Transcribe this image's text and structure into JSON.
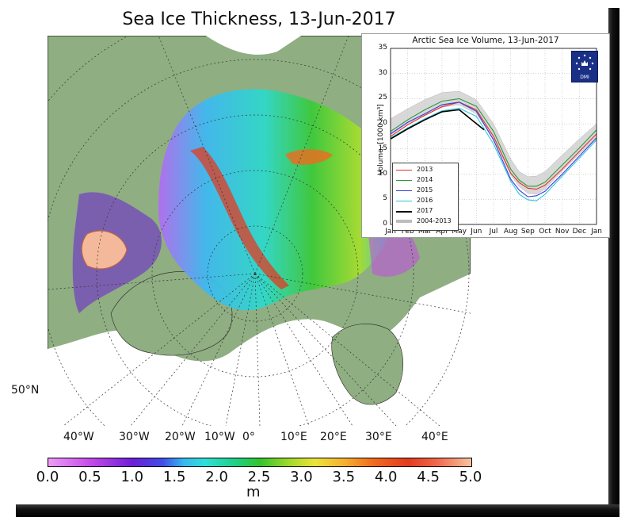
{
  "main_title": "Sea Ice Thickness, 13-Jun-2017",
  "map": {
    "lon_ticks": [
      "40°W",
      "30°W",
      "20°W",
      "10°W",
      "0°",
      "10°E",
      "20°E",
      "30°E",
      "40°E"
    ],
    "lat_tick": "50°N",
    "colors": {
      "land": "#8fae82",
      "ocean": "#ffffff",
      "grid": "#333333"
    }
  },
  "colorbar": {
    "ticks": [
      "0.0",
      "0.5",
      "1.0",
      "1.5",
      "2.0",
      "2.5",
      "3.0",
      "3.5",
      "4.0",
      "4.5",
      "5.0"
    ],
    "unit": "m",
    "range": [
      0,
      5
    ]
  },
  "chart_data": {
    "type": "line",
    "title": "Arctic Sea Ice Volume, 13-Jun-2017",
    "ylabel": "Volume, [1000 km³]",
    "xlabel": "",
    "ylim": [
      0,
      35
    ],
    "yticks": [
      0,
      5,
      10,
      15,
      20,
      25,
      30,
      35
    ],
    "months": [
      "Jan",
      "Feb",
      "Mar",
      "Apr",
      "May",
      "Jun",
      "Jul",
      "Aug",
      "Sep",
      "Oct",
      "Nov",
      "Dec",
      "Jan"
    ],
    "legend_position": "lower-left",
    "grid": true,
    "logo_text": "DMI",
    "series": [
      {
        "name": "2013",
        "color": "#e8302a",
        "x": [
          0,
          1,
          2,
          3,
          4,
          5,
          6,
          7,
          7.5,
          8,
          8.5,
          9,
          10,
          11,
          12
        ],
        "values": [
          17.5,
          19.8,
          21.7,
          23.4,
          24.3,
          22.8,
          17.5,
          10.2,
          8.3,
          7.2,
          7.0,
          7.8,
          11.0,
          14.5,
          18.0
        ]
      },
      {
        "name": "2014",
        "color": "#2a9a3a",
        "x": [
          0,
          1,
          2,
          3,
          4,
          5,
          6,
          7,
          7.5,
          8,
          8.5,
          9,
          10,
          11,
          12
        ],
        "values": [
          18.5,
          20.8,
          22.8,
          24.5,
          25.0,
          23.5,
          18.5,
          11.0,
          8.8,
          7.6,
          7.6,
          8.4,
          11.8,
          15.2,
          18.8
        ]
      },
      {
        "name": "2015",
        "color": "#3a3ae0",
        "x": [
          0,
          1,
          2,
          3,
          4,
          5,
          6,
          7,
          7.5,
          8,
          8.5,
          9,
          10,
          11,
          12
        ],
        "values": [
          18.0,
          20.3,
          22.0,
          23.8,
          24.3,
          22.5,
          16.8,
          9.0,
          6.8,
          5.5,
          5.7,
          6.6,
          10.0,
          13.6,
          17.2
        ]
      },
      {
        "name": "2016",
        "color": "#2ac8d8",
        "x": [
          0,
          1,
          2,
          3,
          4,
          5,
          6,
          7,
          7.5,
          8,
          8.5,
          9,
          10,
          11,
          12
        ],
        "values": [
          17.2,
          19.2,
          21.0,
          22.6,
          23.1,
          21.5,
          16.0,
          8.6,
          6.0,
          4.9,
          4.7,
          6.0,
          9.6,
          13.2,
          16.8
        ]
      },
      {
        "name": "2017",
        "color": "#000000",
        "x": [
          0,
          1,
          2,
          3,
          4,
          5.45
        ],
        "values": [
          17.0,
          19.0,
          20.8,
          22.4,
          22.8,
          18.8
        ]
      }
    ],
    "band": {
      "name": "2004-2013",
      "color": "#9a9a9a",
      "x": [
        0,
        1,
        2,
        3,
        4,
        5,
        6,
        7,
        7.5,
        8,
        8.5,
        9,
        10,
        11,
        12
      ],
      "upper": [
        21.0,
        23.0,
        24.8,
        26.2,
        26.5,
        24.8,
        20.0,
        13.0,
        10.5,
        9.5,
        9.6,
        10.5,
        13.8,
        17.0,
        20.0
      ],
      "lower": [
        17.8,
        20.0,
        21.8,
        23.3,
        23.8,
        22.0,
        17.0,
        9.8,
        7.5,
        6.2,
        6.0,
        7.0,
        10.6,
        14.0,
        17.3
      ]
    }
  }
}
